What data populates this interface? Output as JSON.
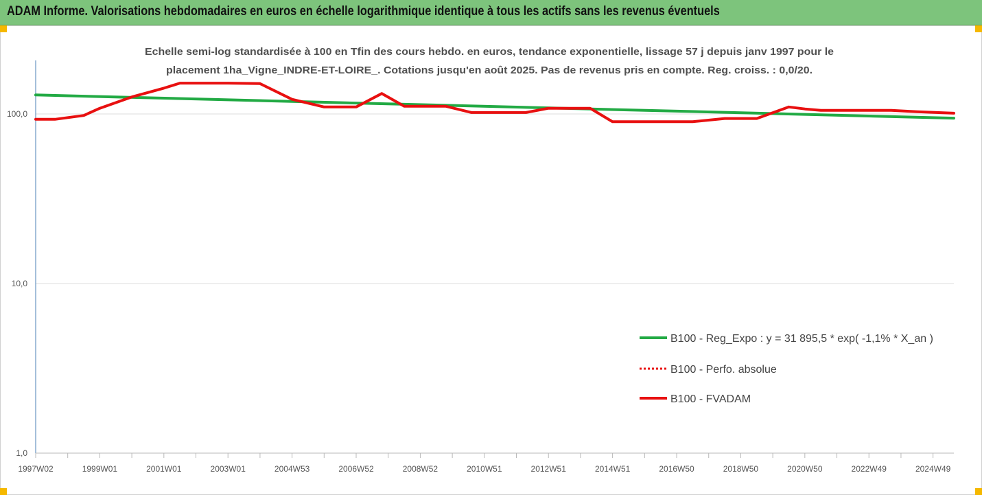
{
  "banner": {
    "title": "ADAM Informe. Valorisations hebdomadaires en euros en échelle logarithmique identique à tous les actifs sans les revenus éventuels",
    "background": "#7dc47c"
  },
  "chart_data": {
    "type": "line",
    "title_lines": [
      "Echelle semi-log standardisée à 100 en Tfin des cours hebdo. en euros, tendance exponentielle, lissage 57 j depuis janv 1997 pour le",
      "placement 1ha_Vigne_INDRE-ET-LOIRE_. Cotations jusqu'en août 2025.  Pas de revenus pris en compte. Reg. croiss. : 0,0/20."
    ],
    "yscale": "log",
    "ylim": [
      1,
      200
    ],
    "yticks": [
      {
        "value": 1,
        "label": "1,0"
      },
      {
        "value": 10,
        "label": "10,0"
      },
      {
        "value": 100,
        "label": "100,0"
      }
    ],
    "xlim": [
      1997.0,
      2025.65
    ],
    "xticks": [
      {
        "x": 1997.0,
        "label": "1997W02"
      },
      {
        "x": 1999.0,
        "label": "1999W01"
      },
      {
        "x": 2001.0,
        "label": "2001W01"
      },
      {
        "x": 2003.0,
        "label": "2003W01"
      },
      {
        "x": 2005.0,
        "label": "2004W53"
      },
      {
        "x": 2007.0,
        "label": "2006W52"
      },
      {
        "x": 2009.0,
        "label": "2008W52"
      },
      {
        "x": 2011.0,
        "label": "2010W51"
      },
      {
        "x": 2013.0,
        "label": "2012W51"
      },
      {
        "x": 2015.0,
        "label": "2014W51"
      },
      {
        "x": 2017.0,
        "label": "2016W50"
      },
      {
        "x": 2019.0,
        "label": "2018W50"
      },
      {
        "x": 2021.0,
        "label": "2020W50"
      },
      {
        "x": 2023.0,
        "label": "2022W49"
      },
      {
        "x": 2025.0,
        "label": "2024W49"
      }
    ],
    "grid": "horizontal",
    "legend_position": "right",
    "series": [
      {
        "name": "B100 - Reg_Expo : y = 31 895,5 * exp( -1,1% *  X_an )",
        "color": "#22aa44",
        "style": "solid",
        "points": [
          [
            1997.0,
            129.5
          ],
          [
            2025.65,
            94.5
          ]
        ]
      },
      {
        "name": "B100 - Perfo. absolue",
        "color": "#e81010",
        "style": "dotted",
        "points": [
          [
            1997.0,
            93
          ],
          [
            1997.6,
            93
          ],
          [
            1998.5,
            98
          ],
          [
            1999.0,
            108
          ],
          [
            2000.0,
            126
          ],
          [
            2001.0,
            142
          ],
          [
            2001.5,
            152
          ],
          [
            2003.0,
            152
          ],
          [
            2004.0,
            151
          ],
          [
            2005.0,
            122
          ],
          [
            2006.0,
            110
          ],
          [
            2007.0,
            110
          ],
          [
            2007.8,
            132
          ],
          [
            2008.5,
            111
          ],
          [
            2009.8,
            111
          ],
          [
            2010.6,
            102
          ],
          [
            2011.5,
            102
          ],
          [
            2012.3,
            102
          ],
          [
            2013.0,
            108
          ],
          [
            2014.3,
            108
          ],
          [
            2015.0,
            90
          ],
          [
            2016.5,
            90
          ],
          [
            2017.5,
            90
          ],
          [
            2018.5,
            94
          ],
          [
            2019.5,
            94
          ],
          [
            2020.5,
            110
          ],
          [
            2021.0,
            107
          ],
          [
            2021.5,
            105
          ],
          [
            2022.5,
            105
          ],
          [
            2023.7,
            105
          ],
          [
            2024.5,
            103
          ],
          [
            2025.65,
            101
          ]
        ]
      },
      {
        "name": "B100 - FVADAM",
        "color": "#e81010",
        "style": "solid",
        "points": [
          [
            1997.0,
            93
          ],
          [
            1997.6,
            93
          ],
          [
            1998.5,
            98
          ],
          [
            1999.0,
            108
          ],
          [
            2000.0,
            126
          ],
          [
            2001.0,
            142
          ],
          [
            2001.5,
            152
          ],
          [
            2003.0,
            152
          ],
          [
            2004.0,
            151
          ],
          [
            2005.0,
            122
          ],
          [
            2006.0,
            110
          ],
          [
            2007.0,
            110
          ],
          [
            2007.8,
            132
          ],
          [
            2008.5,
            111
          ],
          [
            2009.8,
            111
          ],
          [
            2010.6,
            102
          ],
          [
            2011.5,
            102
          ],
          [
            2012.3,
            102
          ],
          [
            2013.0,
            108
          ],
          [
            2014.3,
            108
          ],
          [
            2015.0,
            90
          ],
          [
            2016.5,
            90
          ],
          [
            2017.5,
            90
          ],
          [
            2018.5,
            94
          ],
          [
            2019.5,
            94
          ],
          [
            2020.5,
            110
          ],
          [
            2021.0,
            107
          ],
          [
            2021.5,
            105
          ],
          [
            2022.5,
            105
          ],
          [
            2023.7,
            105
          ],
          [
            2024.5,
            103
          ],
          [
            2025.65,
            101
          ]
        ]
      }
    ]
  }
}
